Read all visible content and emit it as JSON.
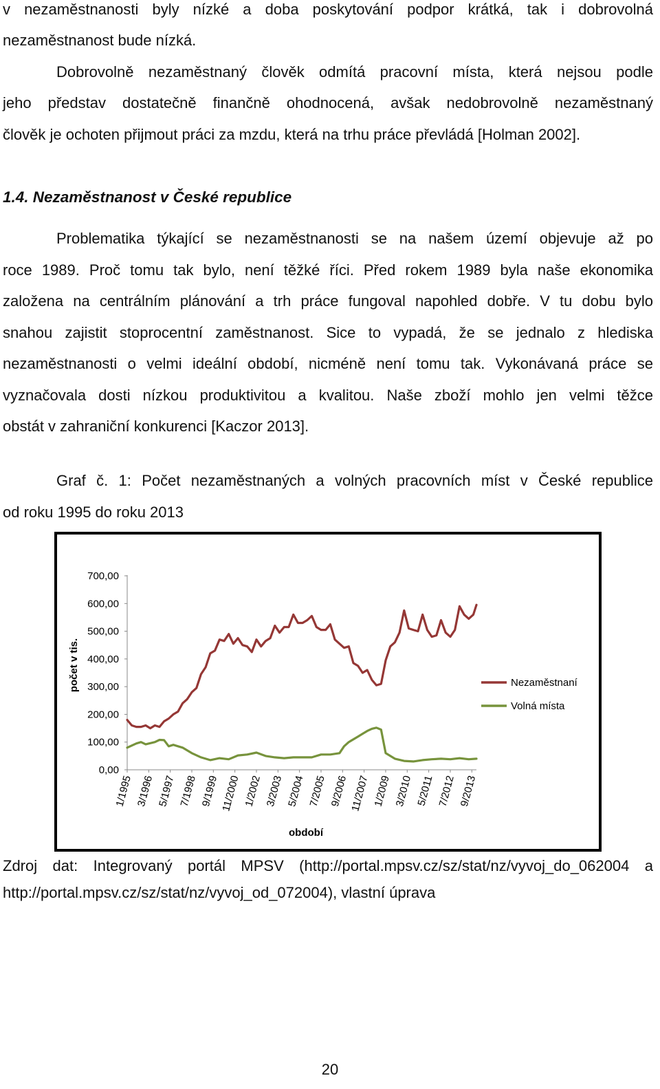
{
  "paragraph1": {
    "lines": [
      "v nezaměstnanosti byly nízké a doba poskytování podpor krátká, tak i dobrovolná",
      "nezaměstnanost bude nízká."
    ]
  },
  "paragraph2": {
    "lines": [
      "Dobrovolně nezaměstnaný člověk odmítá pracovní místa, která nejsou podle",
      "jeho představ dostatečně finančně ohodnocená, avšak nedobrovolně nezaměstnaný",
      "člověk je ochoten přijmout práci za mzdu, která na trhu práce převládá [Holman 2002]."
    ]
  },
  "section_heading": "1.4. Nezaměstnanost v České republice",
  "paragraph3": {
    "lines": [
      "Problematika týkající se nezaměstnanosti se na našem území objevuje až po",
      "roce 1989. Proč tomu tak bylo, není těžké říci. Před rokem 1989 byla naše ekonomika",
      "založena na centrálním plánování a trh práce fungoval napohled dobře. V tu dobu bylo",
      "snahou zajistit stoprocentní zaměstnanost. Sice to vypadá, že se jednalo z hlediska",
      "nezaměstnanosti o velmi ideální období, nicméně není tomu tak. Vykonávaná práce se",
      "vyznačovala dosti nízkou produktivitou a kvalitou. Naše zboží mohlo jen velmi těžce",
      "obstát v zahraniční konkurenci [Kaczor 2013]."
    ]
  },
  "caption": {
    "lines": [
      "Graf č. 1: Počet nezaměstnaných a volných pracovních míst v České republice",
      "od roku 1995 do roku 2013"
    ]
  },
  "source": {
    "lines": [
      "Zdroj dat: Integrovaný portál MPSV (http://portal.mpsv.cz/sz/stat/nz/vyvoj_do_062004 a",
      "http://portal.mpsv.cz/sz/stat/nz/vyvoj_od_072004), vlastní úprava"
    ]
  },
  "page_number": "20",
  "chart_data": {
    "type": "line",
    "xlabel": "období",
    "ylabel": "počet v tis.",
    "ylim": [
      0,
      700
    ],
    "yticks": [
      "700,00",
      "600,00",
      "500,00",
      "400,00",
      "300,00",
      "200,00",
      "100,00",
      "0,00"
    ],
    "x_tick_labels": [
      "1/1995",
      "3/1996",
      "5/1997",
      "7/1998",
      "9/1999",
      "11/2000",
      "1/2002",
      "3/2003",
      "5/2004",
      "7/2005",
      "9/2006",
      "11/2007",
      "1/2009",
      "3/2010",
      "5/2011",
      "7/2012",
      "9/2013"
    ],
    "x_start": "1995-01",
    "x_end": "2013-12",
    "grid": false,
    "legend_position": "right",
    "series": [
      {
        "name": "Nezaměstnaní",
        "color": "#953735",
        "points": [
          [
            "1995-01",
            180
          ],
          [
            "1995-04",
            160
          ],
          [
            "1995-07",
            155
          ],
          [
            "1995-10",
            155
          ],
          [
            "1996-01",
            160
          ],
          [
            "1996-04",
            150
          ],
          [
            "1996-07",
            160
          ],
          [
            "1996-10",
            155
          ],
          [
            "1997-01",
            175
          ],
          [
            "1997-04",
            185
          ],
          [
            "1997-07",
            200
          ],
          [
            "1997-10",
            210
          ],
          [
            "1998-01",
            240
          ],
          [
            "1998-04",
            255
          ],
          [
            "1998-07",
            280
          ],
          [
            "1998-10",
            295
          ],
          [
            "1999-01",
            345
          ],
          [
            "1999-04",
            370
          ],
          [
            "1999-07",
            420
          ],
          [
            "1999-10",
            430
          ],
          [
            "2000-01",
            470
          ],
          [
            "2000-04",
            465
          ],
          [
            "2000-07",
            490
          ],
          [
            "2000-10",
            455
          ],
          [
            "2001-01",
            475
          ],
          [
            "2001-04",
            450
          ],
          [
            "2001-07",
            445
          ],
          [
            "2001-10",
            425
          ],
          [
            "2002-01",
            470
          ],
          [
            "2002-04",
            445
          ],
          [
            "2002-07",
            465
          ],
          [
            "2002-10",
            475
          ],
          [
            "2003-01",
            520
          ],
          [
            "2003-04",
            495
          ],
          [
            "2003-07",
            515
          ],
          [
            "2003-10",
            515
          ],
          [
            "2004-01",
            560
          ],
          [
            "2004-04",
            530
          ],
          [
            "2004-07",
            530
          ],
          [
            "2004-10",
            540
          ],
          [
            "2005-01",
            555
          ],
          [
            "2005-04",
            515
          ],
          [
            "2005-07",
            505
          ],
          [
            "2005-10",
            505
          ],
          [
            "2006-01",
            525
          ],
          [
            "2006-04",
            470
          ],
          [
            "2006-07",
            455
          ],
          [
            "2006-10",
            440
          ],
          [
            "2007-01",
            445
          ],
          [
            "2007-04",
            385
          ],
          [
            "2007-07",
            375
          ],
          [
            "2007-10",
            350
          ],
          [
            "2008-01",
            360
          ],
          [
            "2008-04",
            325
          ],
          [
            "2008-07",
            305
          ],
          [
            "2008-10",
            310
          ],
          [
            "2009-01",
            395
          ],
          [
            "2009-04",
            445
          ],
          [
            "2009-07",
            460
          ],
          [
            "2009-10",
            495
          ],
          [
            "2010-01",
            575
          ],
          [
            "2010-04",
            510
          ],
          [
            "2010-07",
            505
          ],
          [
            "2010-10",
            500
          ],
          [
            "2011-01",
            560
          ],
          [
            "2011-04",
            505
          ],
          [
            "2011-07",
            480
          ],
          [
            "2011-10",
            485
          ],
          [
            "2012-01",
            540
          ],
          [
            "2012-04",
            495
          ],
          [
            "2012-07",
            480
          ],
          [
            "2012-10",
            505
          ],
          [
            "2013-01",
            590
          ],
          [
            "2013-04",
            560
          ],
          [
            "2013-07",
            545
          ],
          [
            "2013-10",
            560
          ],
          [
            "2013-12",
            595
          ]
        ]
      },
      {
        "name": "Volná místa",
        "color": "#77933c",
        "points": [
          [
            "1995-01",
            80
          ],
          [
            "1995-07",
            95
          ],
          [
            "1995-10",
            100
          ],
          [
            "1996-01",
            92
          ],
          [
            "1996-07",
            100
          ],
          [
            "1996-10",
            108
          ],
          [
            "1997-01",
            107
          ],
          [
            "1997-04",
            85
          ],
          [
            "1997-07",
            90
          ],
          [
            "1998-01",
            80
          ],
          [
            "1998-07",
            60
          ],
          [
            "1999-01",
            45
          ],
          [
            "1999-07",
            35
          ],
          [
            "2000-01",
            42
          ],
          [
            "2000-07",
            38
          ],
          [
            "2001-01",
            52
          ],
          [
            "2001-07",
            55
          ],
          [
            "2002-01",
            62
          ],
          [
            "2002-07",
            50
          ],
          [
            "2003-01",
            45
          ],
          [
            "2003-07",
            42
          ],
          [
            "2004-01",
            45
          ],
          [
            "2004-07",
            45
          ],
          [
            "2005-01",
            45
          ],
          [
            "2005-07",
            55
          ],
          [
            "2006-01",
            55
          ],
          [
            "2006-07",
            60
          ],
          [
            "2006-10",
            85
          ],
          [
            "2007-01",
            100
          ],
          [
            "2007-07",
            120
          ],
          [
            "2007-10",
            130
          ],
          [
            "2008-01",
            140
          ],
          [
            "2008-04",
            148
          ],
          [
            "2008-07",
            152
          ],
          [
            "2008-10",
            145
          ],
          [
            "2009-01",
            60
          ],
          [
            "2009-07",
            40
          ],
          [
            "2010-01",
            32
          ],
          [
            "2010-07",
            30
          ],
          [
            "2011-01",
            35
          ],
          [
            "2011-07",
            38
          ],
          [
            "2012-01",
            40
          ],
          [
            "2012-07",
            38
          ],
          [
            "2013-01",
            42
          ],
          [
            "2013-07",
            38
          ],
          [
            "2013-12",
            40
          ]
        ]
      }
    ]
  }
}
